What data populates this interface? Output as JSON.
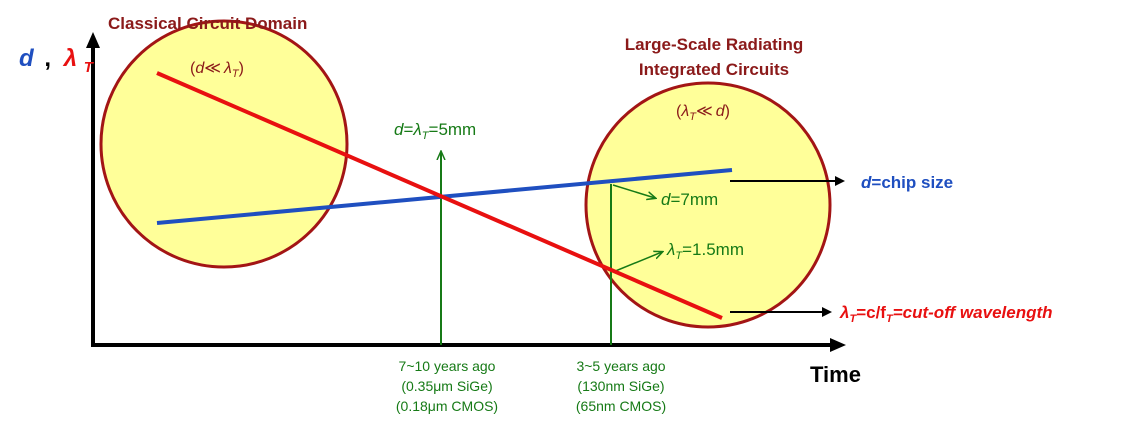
{
  "axes": {
    "y_label_d": "d",
    "y_label_sep": ",",
    "y_label_lambda": "λ",
    "y_label_lambda_sub": "T",
    "x_label": "Time"
  },
  "regions": {
    "classical_title": "Classical Circuit Domain",
    "classical_condition": {
      "open": "(",
      "d": "d",
      "op": "≪",
      "lambda": "λ",
      "sub": "T",
      "close": ")"
    },
    "radiating_title_line1": "Large-Scale Radiating",
    "radiating_title_line2": "Integrated Circuits",
    "radiating_condition": {
      "open": "(",
      "lambda": "λ",
      "sub": "T",
      "op": "≪",
      "d": "d",
      "close": ")"
    }
  },
  "crossover": {
    "d": "d",
    "eq1": "=",
    "lambda": "λ",
    "sub": "T",
    "value": "=5mm"
  },
  "annotations": {
    "d_value": {
      "d": "d",
      "value": "=7mm"
    },
    "lambda_value": {
      "lambda": "λ",
      "sub": "T",
      "value": "=1.5mm"
    }
  },
  "legend": {
    "d_entry": {
      "d": "d",
      "rest": "=chip size"
    },
    "lambda_entry": {
      "lambda": "λ",
      "sub": "T",
      "eq": "=c/f",
      "sub2": "T",
      "rest": "=cut-off wavelength"
    }
  },
  "timeline": {
    "marker1": [
      "7~10 years ago",
      "(0.35μm SiGe)",
      "(0.18μm CMOS)"
    ],
    "marker2": [
      "3~5 years ago",
      "(130nm SiGe)",
      "(65nm CMOS)"
    ]
  },
  "colors": {
    "circle_fill": "#ffff99",
    "circle_stroke": "#a31515",
    "title_color": "#8b1a1a",
    "d_color": "#1f4fc0",
    "lambda_color": "#e81010",
    "green": "#167a16",
    "black": "#000000"
  }
}
